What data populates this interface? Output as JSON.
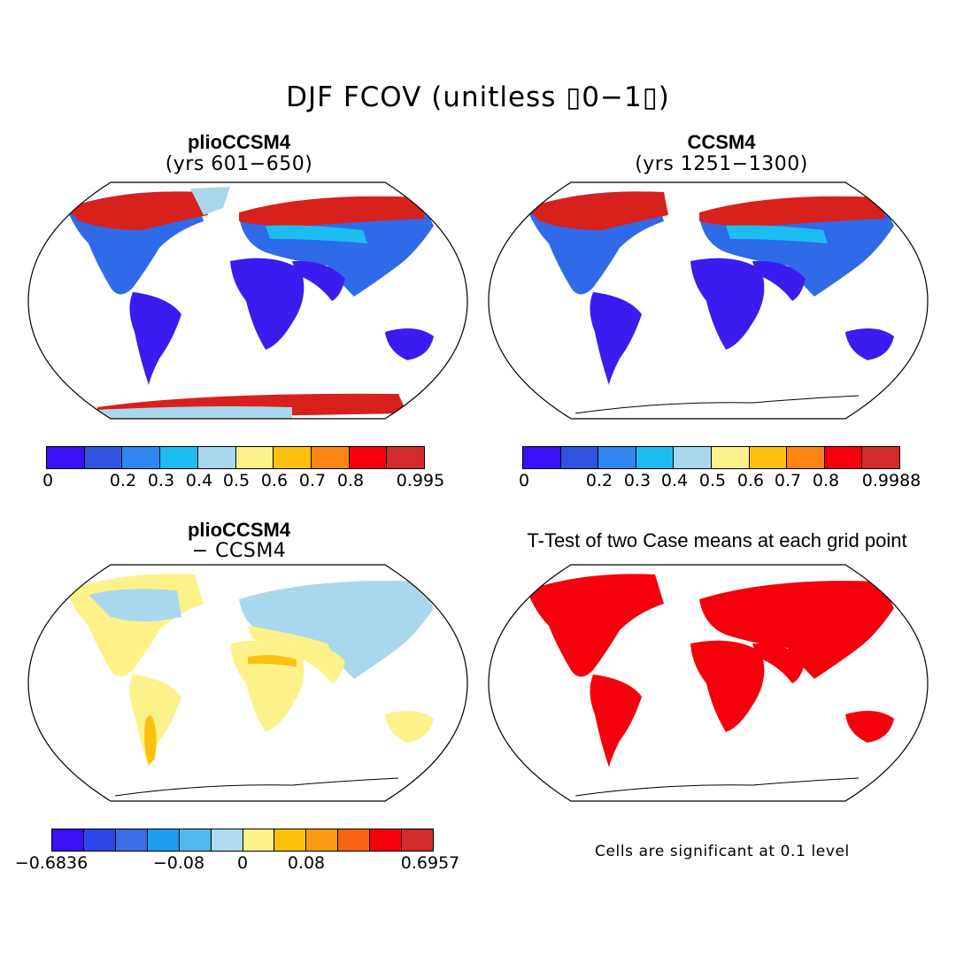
{
  "title": "DJF FCOV (unitless ▯0−1▯)",
  "panels": {
    "top_left": {
      "title": "plioCCSM4",
      "subtitle": "(yrs 601−650)"
    },
    "top_right": {
      "title": "CCSM4",
      "subtitle": "(yrs 1251−1300)"
    },
    "bottom_left": {
      "title": "plioCCSM4",
      "subtitle": "− CCSM4"
    },
    "bottom_right": {
      "title": "T-Test of two Case means at each grid point",
      "note": "Cells are significant at 0.1 level"
    }
  },
  "colorbars": {
    "top_left": {
      "colors": [
        "#3a10f5",
        "#2f55e0",
        "#2e86ee",
        "#1cbdf2",
        "#a9d7ee",
        "#fdf18a",
        "#fcc10e",
        "#fb8412",
        "#f4000c",
        "#d32b2b"
      ],
      "tick_labels": [
        "0",
        "0.2",
        "0.3",
        "0.4",
        "0.5",
        "0.6",
        "0.7",
        "0.8",
        "0.995"
      ]
    },
    "top_right": {
      "colors": [
        "#3a10f5",
        "#2f55e0",
        "#2e86ee",
        "#1cbdf2",
        "#a9d7ee",
        "#fdf18a",
        "#fcc10e",
        "#fb8412",
        "#f4000c",
        "#d32b2b"
      ],
      "tick_labels": [
        "0",
        "0.2",
        "0.3",
        "0.4",
        "0.5",
        "0.6",
        "0.7",
        "0.8",
        "0.9988"
      ]
    },
    "bottom_left": {
      "colors": [
        "#3a10f5",
        "#2f45e8",
        "#3a6ee6",
        "#1e9cf0",
        "#4fbaf0",
        "#b0daf0",
        "#fdf18a",
        "#fcc10e",
        "#fb9a14",
        "#f86412",
        "#f4000c",
        "#d32b2b"
      ],
      "tick_labels": [
        "−0.6836",
        "−0.08",
        "0",
        "0.08",
        "0.6957"
      ]
    }
  },
  "map_colors": {
    "land_low": "#3a1cf0",
    "land_mid": "#2f6ae8",
    "snow_high": "#d8201c",
    "diff_neutral": "#fdf18a",
    "diff_light_blue": "#a9d7ee",
    "signif_red": "#f4000c"
  }
}
